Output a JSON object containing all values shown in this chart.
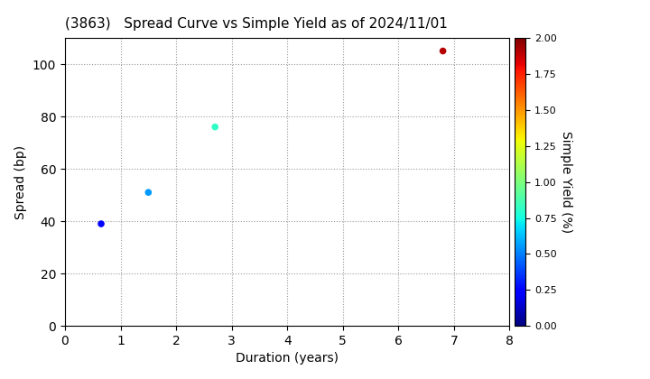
{
  "title": "(3863)   Spread Curve vs Simple Yield as of 2024/11/01",
  "xlabel": "Duration (years)",
  "ylabel": "Spread (bp)",
  "colorbar_label": "Simple Yield (%)",
  "xlim": [
    0,
    8
  ],
  "ylim": [
    0,
    110
  ],
  "yticks": [
    0,
    20,
    40,
    60,
    80,
    100
  ],
  "xticks": [
    0,
    1,
    2,
    3,
    4,
    5,
    6,
    7,
    8
  ],
  "colorbar_min": 0.0,
  "colorbar_max": 2.0,
  "colorbar_ticks": [
    0.0,
    0.25,
    0.5,
    0.75,
    1.0,
    1.25,
    1.5,
    1.75,
    2.0
  ],
  "points": [
    {
      "duration": 0.65,
      "spread": 39,
      "simple_yield": 0.22
    },
    {
      "duration": 1.5,
      "spread": 51,
      "simple_yield": 0.55
    },
    {
      "duration": 2.7,
      "spread": 76,
      "simple_yield": 0.82
    },
    {
      "duration": 6.8,
      "spread": 105,
      "simple_yield": 1.9
    }
  ],
  "marker_size": 30,
  "background_color": "#ffffff",
  "title_fontsize": 11,
  "axis_fontsize": 10,
  "colormap": "jet"
}
